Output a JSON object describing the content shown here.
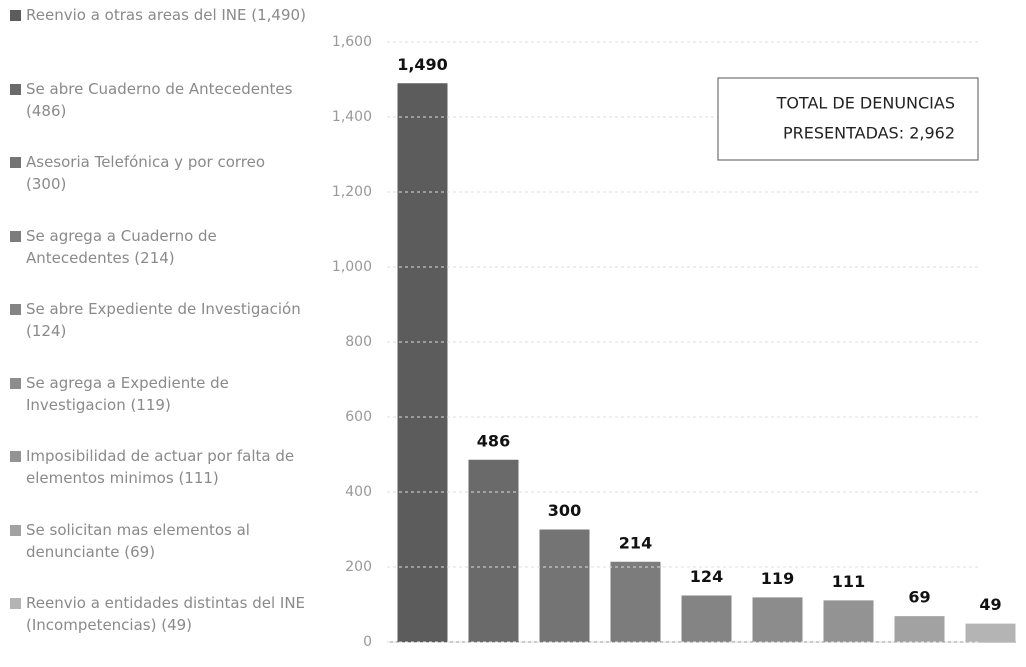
{
  "chart_data": {
    "type": "bar",
    "categories": [
      "Reenvio a otras areas del INE (1,490)",
      "Se abre Cuaderno de Antecedentes (486)",
      "Asesoria Telefónica y por correo (300)",
      "Se agrega a Cuaderno de Antecedentes (214)",
      "Se abre Expediente de Investigación (124)",
      "Se agrega a Expediente de Investigacion (119)",
      "Imposibilidad de actuar por falta de elementos minimos (111)",
      "Se solicitan mas elementos al denunciante (69)",
      "Reenvio a entidades distintas del INE (Incompetencias) (49)"
    ],
    "values": [
      1490,
      486,
      300,
      214,
      124,
      119,
      111,
      69,
      49
    ],
    "value_labels": [
      "1,490",
      "486",
      "300",
      "214",
      "124",
      "119",
      "111",
      "69",
      "49"
    ],
    "colors": [
      "#5c5c5c",
      "#6a6a6a",
      "#747474",
      "#7c7c7c",
      "#848484",
      "#8c8c8c",
      "#939393",
      "#a2a2a2",
      "#b4b4b4"
    ],
    "ylim": [
      0,
      1600
    ],
    "yticks": [
      0,
      200,
      400,
      600,
      800,
      {
        "value": 1000,
        "label": "1,000"
      },
      {
        "value": 1200,
        "label": "1,200"
      },
      {
        "value": 1400,
        "label": "1,400"
      },
      {
        "value": 1600,
        "label": "1,600"
      }
    ],
    "grid": true,
    "annotation": [
      "TOTAL DE DENUNCIAS",
      "PRESENTADAS: 2,962"
    ]
  }
}
